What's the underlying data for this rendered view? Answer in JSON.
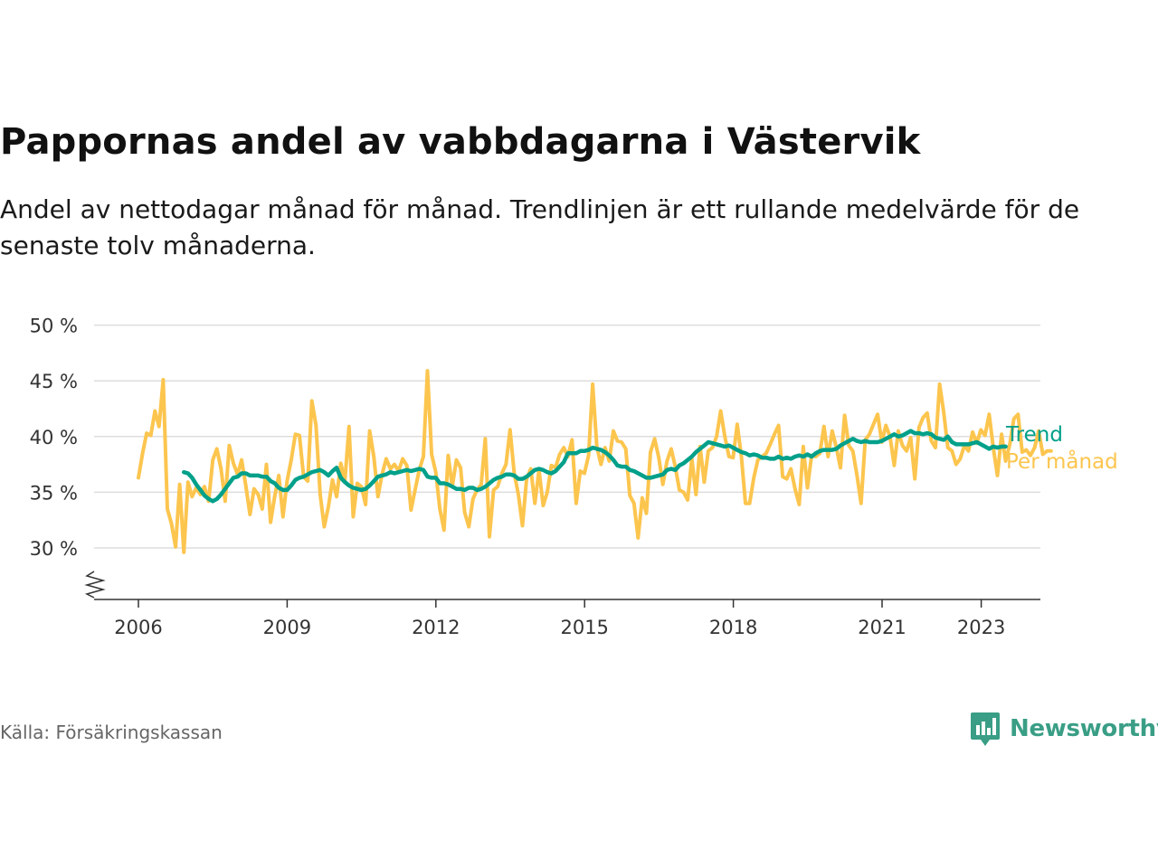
{
  "title": "Pappornas andel av vabbdagarna i Västervik",
  "subtitle": "Andel av nettodagar månad för månad. Trendlinjen är ett rullande medelvärde för de senaste tolv månaderna.",
  "source": "Källa: Försäkringskassan",
  "brand": "Newsworthy",
  "colors": {
    "trend": "#00a08a",
    "monthly": "#fcc54e",
    "brand": "#3a9e86",
    "grid": "#dddddd"
  },
  "chart_data": {
    "type": "line",
    "y_ticks": [
      30,
      35,
      40,
      45,
      50
    ],
    "y_tick_labels": [
      "30 %",
      "35 %",
      "40 %",
      "45 %",
      "50 %"
    ],
    "x_ticks": [
      2006,
      2009,
      2012,
      2015,
      2018,
      2021,
      2023
    ],
    "x_tick_labels": [
      "2006",
      "2009",
      "2012",
      "2015",
      "2018",
      "2021",
      "2023"
    ],
    "ylim": [
      25,
      50
    ],
    "xlim": [
      2005.1,
      2024.2
    ],
    "grid": true,
    "legend": "right end labels",
    "series": [
      {
        "name": "Per månad",
        "color": "#fcc54e",
        "start": 2006.0,
        "step": 0.0833,
        "values": [
          36.3,
          38.5,
          40.3,
          40.1,
          42.3,
          40.9,
          45.1,
          33.5,
          32.2,
          30.1,
          35.7,
          29.6,
          35.9,
          34.6,
          35.4,
          34.8,
          35.5,
          34.2,
          37.9,
          38.9,
          37.1,
          34.2,
          39.2,
          37.6,
          36.6,
          37.9,
          35.6,
          33.0,
          35.3,
          34.8,
          33.5,
          37.5,
          32.3,
          34.6,
          36.5,
          32.8,
          36.0,
          37.9,
          40.2,
          40.1,
          36.4,
          36.0,
          43.2,
          41.0,
          34.8,
          31.9,
          33.7,
          36.1,
          34.6,
          37.6,
          36.0,
          40.9,
          32.8,
          35.8,
          35.5,
          33.9,
          40.5,
          38.2,
          34.6,
          36.6,
          38.0,
          37.1,
          37.5,
          36.9,
          38.0,
          37.4,
          33.4,
          35.2,
          37.0,
          38.2,
          45.9,
          38.4,
          36.8,
          33.5,
          31.6,
          38.3,
          35.5,
          37.9,
          37.2,
          33.2,
          31.9,
          34.4,
          35.2,
          35.7,
          39.8,
          31.0,
          35.2,
          35.5,
          36.7,
          37.5,
          40.6,
          36.7,
          34.8,
          32.0,
          36.2,
          37.1,
          34.0,
          37.0,
          33.8,
          35.0,
          37.4,
          37.2,
          38.4,
          39.0,
          38.2,
          39.7,
          34.0,
          36.9,
          36.7,
          38.3,
          44.7,
          39.1,
          37.5,
          39.0,
          37.8,
          40.5,
          39.6,
          39.5,
          38.9,
          34.7,
          34.0,
          30.9,
          34.5,
          33.1,
          38.6,
          39.8,
          38.1,
          35.7,
          37.8,
          38.9,
          37.3,
          35.2,
          35.0,
          34.3,
          38.0,
          34.8,
          39.1,
          35.9,
          38.7,
          39.0,
          40.0,
          42.3,
          40.0,
          38.2,
          38.1,
          41.1,
          38.2,
          34.0,
          34.0,
          36.3,
          37.9,
          38.2,
          38.5,
          39.3,
          40.2,
          41.0,
          36.4,
          36.2,
          37.1,
          35.3,
          33.9,
          39.1,
          35.4,
          38.3,
          38.2,
          38.5,
          40.9,
          38.2,
          40.5,
          39.0,
          37.2,
          41.9,
          39.2,
          38.7,
          36.5,
          34.0,
          39.7,
          40.2,
          41.1,
          42.0,
          39.5,
          41.0,
          40.0,
          37.4,
          40.5,
          39.2,
          38.7,
          39.9,
          36.2,
          40.8,
          41.7,
          42.1,
          39.6,
          39.0,
          44.7,
          42.2,
          39.0,
          38.7,
          37.5,
          38.0,
          39.2,
          38.7,
          40.4,
          39.4,
          40.6,
          40.1,
          42.0,
          39.0,
          36.5,
          40.2,
          37.8,
          39.3,
          41.6,
          42.0,
          38.6,
          38.8,
          38.3,
          39.0,
          40.5,
          38.4,
          38.7,
          38.7
        ]
      },
      {
        "name": "Trend",
        "color": "#00a08a",
        "start": 2006.9167,
        "step": 0.0833,
        "values": [
          36.8,
          36.7,
          36.3,
          35.7,
          35.2,
          34.7,
          34.4,
          34.2,
          34.4,
          34.8,
          35.3,
          35.8,
          36.3,
          36.4,
          36.7,
          36.7,
          36.5,
          36.5,
          36.5,
          36.4,
          36.4,
          36.0,
          35.8,
          35.4,
          35.2,
          35.2,
          35.6,
          36.1,
          36.3,
          36.4,
          36.6,
          36.8,
          36.9,
          37.0,
          36.8,
          36.5,
          36.9,
          37.2,
          36.3,
          35.9,
          35.6,
          35.4,
          35.3,
          35.2,
          35.3,
          35.6,
          36.0,
          36.4,
          36.5,
          36.6,
          36.8,
          36.7,
          36.8,
          36.9,
          37.0,
          36.9,
          37.0,
          37.1,
          37.0,
          36.4,
          36.3,
          36.3,
          35.8,
          35.8,
          35.7,
          35.5,
          35.3,
          35.3,
          35.2,
          35.4,
          35.4,
          35.2,
          35.3,
          35.5,
          35.8,
          36.1,
          36.3,
          36.4,
          36.6,
          36.6,
          36.5,
          36.2,
          36.2,
          36.4,
          36.7,
          37.0,
          37.1,
          37.0,
          36.8,
          36.7,
          36.9,
          37.3,
          37.7,
          38.5,
          38.5,
          38.5,
          38.7,
          38.7,
          38.8,
          39.0,
          38.9,
          38.8,
          38.6,
          38.3,
          37.9,
          37.4,
          37.3,
          37.3,
          37.0,
          36.9,
          36.7,
          36.5,
          36.3,
          36.3,
          36.4,
          36.5,
          36.6,
          37.0,
          37.1,
          37.0,
          37.4,
          37.6,
          37.9,
          38.2,
          38.6,
          38.9,
          39.2,
          39.5,
          39.4,
          39.3,
          39.2,
          39.1,
          39.2,
          39.0,
          38.8,
          38.6,
          38.5,
          38.3,
          38.4,
          38.3,
          38.1,
          38.1,
          38.0,
          38.0,
          38.2,
          38.0,
          38.1,
          38.0,
          38.2,
          38.3,
          38.2,
          38.4,
          38.2,
          38.5,
          38.7,
          38.8,
          38.8,
          38.8,
          38.9,
          39.2,
          39.4,
          39.6,
          39.8,
          39.6,
          39.5,
          39.6,
          39.5,
          39.5,
          39.5,
          39.6,
          39.8,
          40.0,
          40.2,
          40.0,
          40.1,
          40.3,
          40.5,
          40.3,
          40.3,
          40.2,
          40.3,
          40.2,
          39.9,
          39.8,
          39.7,
          40.0,
          39.5,
          39.3,
          39.3,
          39.3,
          39.3,
          39.4,
          39.5,
          39.3,
          39.1,
          38.9,
          39.1,
          39.0,
          39.1,
          39.1
        ]
      }
    ]
  }
}
